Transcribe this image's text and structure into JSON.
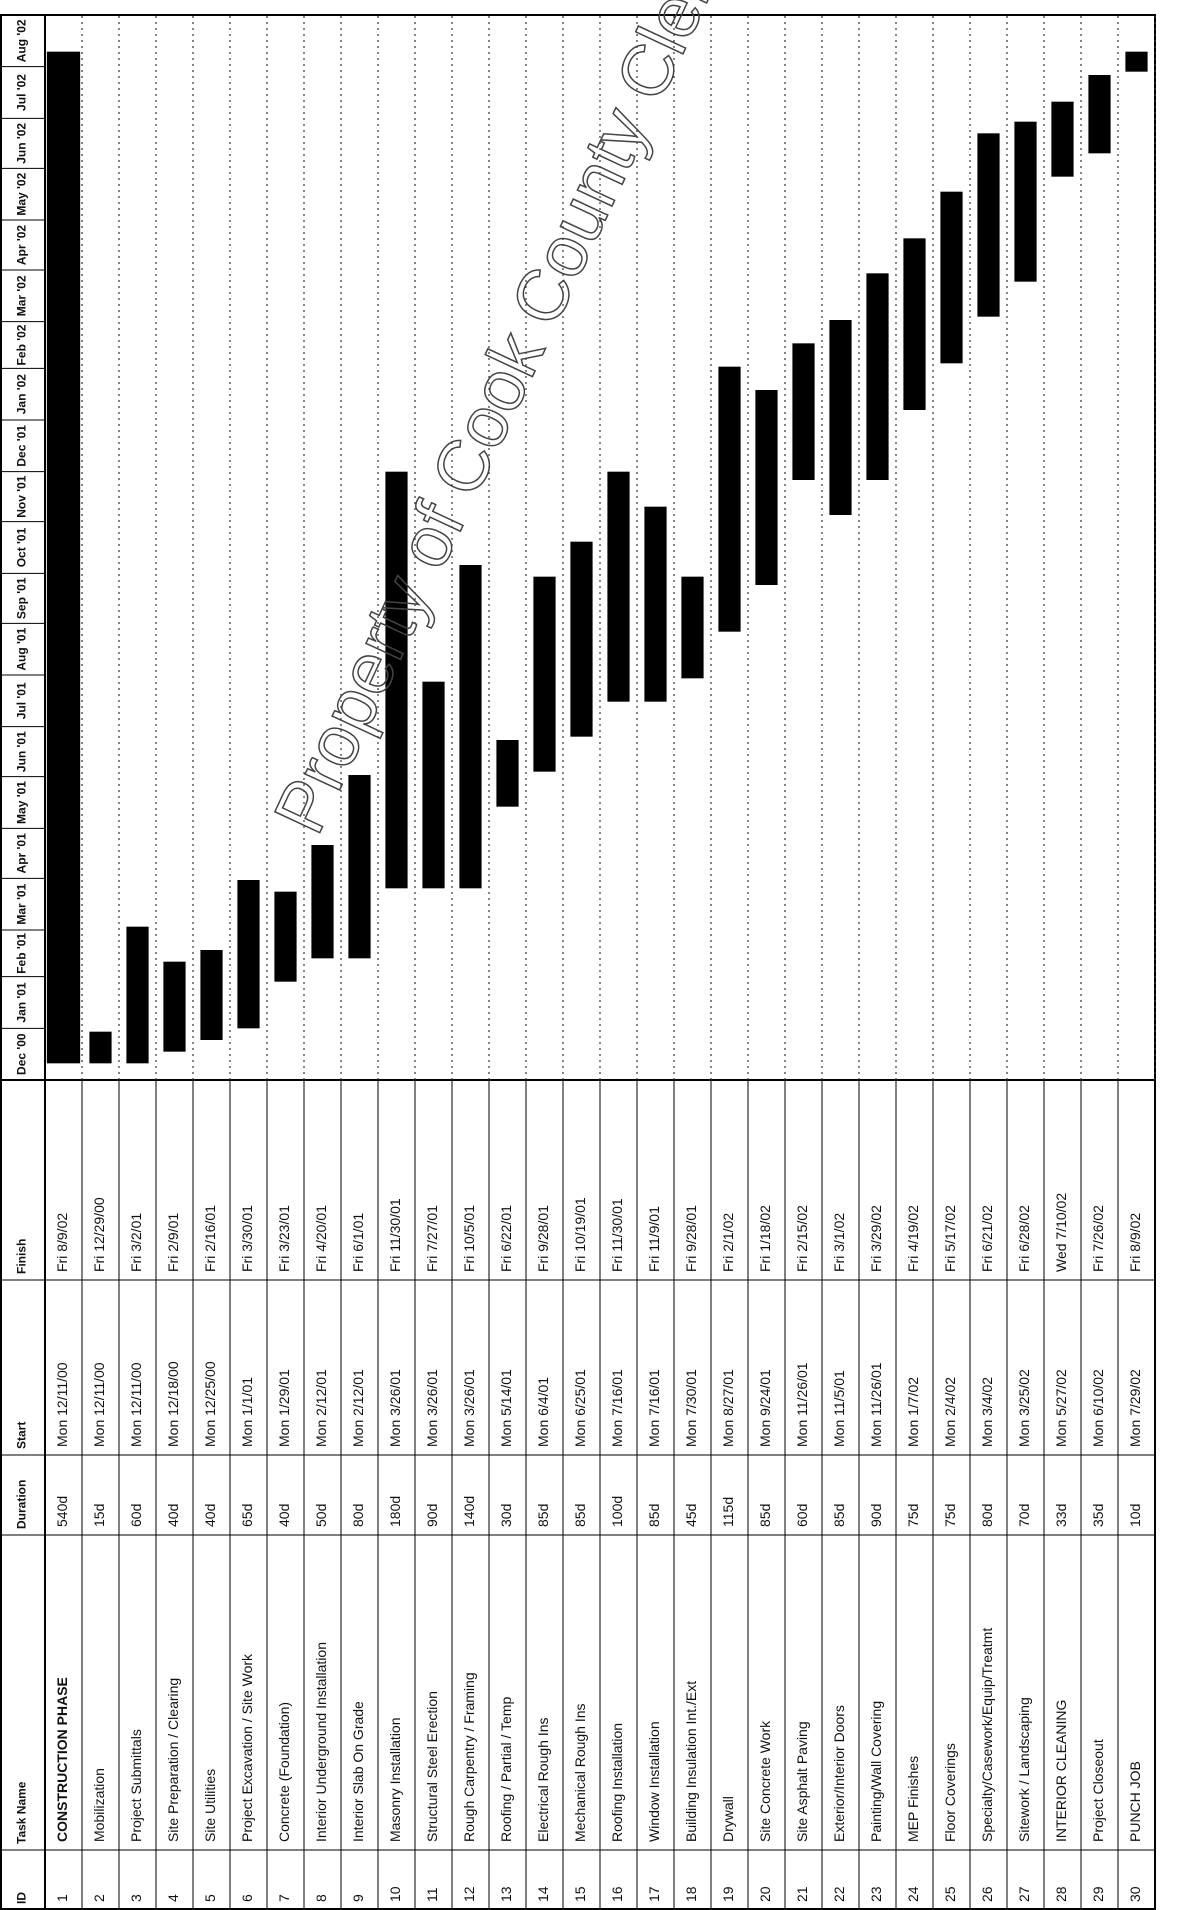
{
  "columns": [
    "ID",
    "Task Name",
    "Duration",
    "Start",
    "Finish"
  ],
  "months": [
    "Dec '00",
    "Jan '01",
    "Feb '01",
    "Mar '01",
    "Apr '01",
    "May '01",
    "Jun '01",
    "Jul '01",
    "Aug '01",
    "Sep '01",
    "Oct '01",
    "Nov '01",
    "Dec '01",
    "Jan '02",
    "Feb '02",
    "Mar '02",
    "Apr '02",
    "May '02",
    "Jun '02",
    "Jul '02",
    "Aug '02"
  ],
  "watermark": "Property of Cook County Clerk's Office",
  "tasks": [
    {
      "id": "1",
      "name": "CONSTRUCTION PHASE",
      "duration": "540d",
      "start": "Mon 12/11/00",
      "finish": "Fri 8/9/02"
    },
    {
      "id": "2",
      "name": "Mobilization",
      "duration": "15d",
      "start": "Mon 12/11/00",
      "finish": "Fri 12/29/00"
    },
    {
      "id": "3",
      "name": "Project Submittals",
      "duration": "60d",
      "start": "Mon 12/11/00",
      "finish": "Fri 3/2/01"
    },
    {
      "id": "4",
      "name": "Site Preparation / Clearing",
      "duration": "40d",
      "start": "Mon 12/18/00",
      "finish": "Fri 2/9/01"
    },
    {
      "id": "5",
      "name": "Site Utilities",
      "duration": "40d",
      "start": "Mon 12/25/00",
      "finish": "Fri 2/16/01"
    },
    {
      "id": "6",
      "name": "Project Excavation / Site Work",
      "duration": "65d",
      "start": "Mon 1/1/01",
      "finish": "Fri 3/30/01"
    },
    {
      "id": "7",
      "name": "Concrete (Foundation)",
      "duration": "40d",
      "start": "Mon 1/29/01",
      "finish": "Fri 3/23/01"
    },
    {
      "id": "8",
      "name": "Interior Underground Installation",
      "duration": "50d",
      "start": "Mon 2/12/01",
      "finish": "Fri 4/20/01"
    },
    {
      "id": "9",
      "name": "Interior Slab On Grade",
      "duration": "80d",
      "start": "Mon 2/12/01",
      "finish": "Fri 6/1/01"
    },
    {
      "id": "10",
      "name": "Masonry Installation",
      "duration": "180d",
      "start": "Mon 3/26/01",
      "finish": "Fri 11/30/01"
    },
    {
      "id": "11",
      "name": "Structural Steel Erection",
      "duration": "90d",
      "start": "Mon 3/26/01",
      "finish": "Fri 7/27/01"
    },
    {
      "id": "12",
      "name": "Rough Carpentry / Framing",
      "duration": "140d",
      "start": "Mon 3/26/01",
      "finish": "Fri 10/5/01"
    },
    {
      "id": "13",
      "name": "Roofing / Partial / Temp",
      "duration": "30d",
      "start": "Mon 5/14/01",
      "finish": "Fri 6/22/01"
    },
    {
      "id": "14",
      "name": "Electrical Rough Ins",
      "duration": "85d",
      "start": "Mon 6/4/01",
      "finish": "Fri 9/28/01"
    },
    {
      "id": "15",
      "name": "Mechanical Rough Ins",
      "duration": "85d",
      "start": "Mon 6/25/01",
      "finish": "Fri 10/19/01"
    },
    {
      "id": "16",
      "name": "Roofing Installation",
      "duration": "100d",
      "start": "Mon 7/16/01",
      "finish": "Fri 11/30/01"
    },
    {
      "id": "17",
      "name": "Window Installation",
      "duration": "85d",
      "start": "Mon 7/16/01",
      "finish": "Fri 11/9/01"
    },
    {
      "id": "18",
      "name": "Building Insulation Int./Ext",
      "duration": "45d",
      "start": "Mon 7/30/01",
      "finish": "Fri 9/28/01"
    },
    {
      "id": "19",
      "name": "Drywall",
      "duration": "115d",
      "start": "Mon 8/27/01",
      "finish": "Fri 2/1/02"
    },
    {
      "id": "20",
      "name": "Site Concrete Work",
      "duration": "85d",
      "start": "Mon 9/24/01",
      "finish": "Fri 1/18/02"
    },
    {
      "id": "21",
      "name": "Site Asphalt Paving",
      "duration": "60d",
      "start": "Mon 11/26/01",
      "finish": "Fri 2/15/02"
    },
    {
      "id": "22",
      "name": "Exterior/Interior Doors",
      "duration": "85d",
      "start": "Mon 11/5/01",
      "finish": "Fri 3/1/02"
    },
    {
      "id": "23",
      "name": "Painting/Wall Covering",
      "duration": "90d",
      "start": "Mon 11/26/01",
      "finish": "Fri 3/29/02"
    },
    {
      "id": "24",
      "name": "MEP Finishes",
      "duration": "75d",
      "start": "Mon 1/7/02",
      "finish": "Fri 4/19/02"
    },
    {
      "id": "25",
      "name": "Floor Coverings",
      "duration": "75d",
      "start": "Mon 2/4/02",
      "finish": "Fri 5/17/02"
    },
    {
      "id": "26",
      "name": "Specialty/Casework/Equip/Treatmt",
      "duration": "80d",
      "start": "Mon 3/4/02",
      "finish": "Fri 6/21/02"
    },
    {
      "id": "27",
      "name": "Sitework / Landscaping",
      "duration": "70d",
      "start": "Mon 3/25/02",
      "finish": "Fri 6/28/02"
    },
    {
      "id": "28",
      "name": "INTERIOR CLEANING",
      "duration": "33d",
      "start": "Mon 5/27/02",
      "finish": "Wed 7/10/02"
    },
    {
      "id": "29",
      "name": "Project Closeout",
      "duration": "35d",
      "start": "Mon 6/10/02",
      "finish": "Fri 7/26/02"
    },
    {
      "id": "30",
      "name": "PUNCH JOB",
      "duration": "10d",
      "start": "Mon 7/29/02",
      "finish": "Fri 8/9/02"
    }
  ]
}
